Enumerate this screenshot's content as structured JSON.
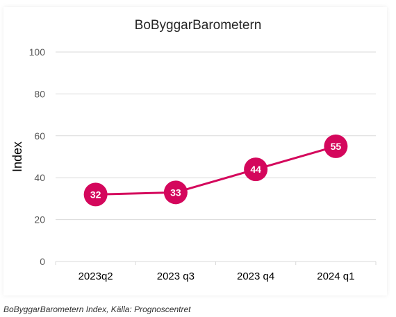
{
  "caption": "BoByggarBarometern Index, Källa: Prognoscentret",
  "chart_data": {
    "type": "line",
    "title": "BoByggarBarometern",
    "xlabel": "",
    "ylabel": "Index",
    "categories": [
      "2023q2",
      "2023 q3",
      "2023 q4",
      "2024 q1"
    ],
    "series": [
      {
        "values": [
          32,
          33,
          44,
          55
        ]
      }
    ],
    "ylim": [
      0,
      100
    ],
    "yticks": [
      0,
      20,
      40,
      60,
      80,
      100
    ],
    "grid": true,
    "legend": "none",
    "colors": {
      "series": "#d4075c",
      "gridline": "#d9d9d9",
      "axis_text": "#595959",
      "title": "#262626"
    }
  }
}
